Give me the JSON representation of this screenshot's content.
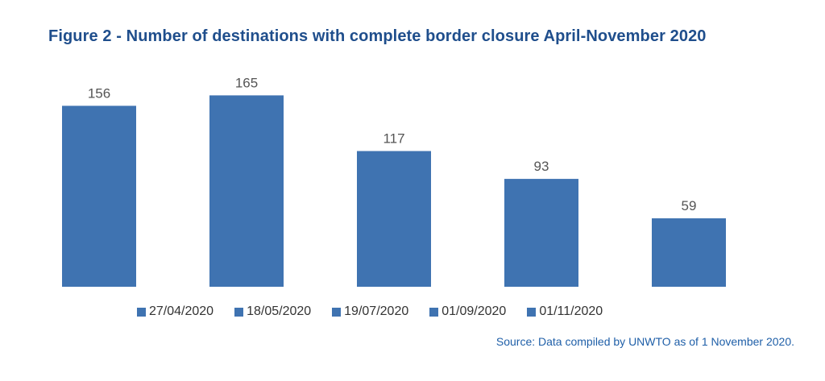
{
  "title": "Figure 2 - Number of destinations with complete border closure April-November 2020",
  "source": "Source: Data compiled by UNWTO as of 1 November 2020.",
  "colors": {
    "bar": "#3f73b1",
    "title": "#1f4e8c",
    "source": "#1f5fa8",
    "data_label": "#555555"
  },
  "chart_data": {
    "type": "bar",
    "categories": [
      "27/04/2020",
      "18/05/2020",
      "19/07/2020",
      "01/09/2020",
      "01/11/2020"
    ],
    "values": [
      156,
      165,
      117,
      93,
      59
    ],
    "ylim": [
      0,
      180
    ],
    "grid": false,
    "legend": "bottom",
    "data_labels": true
  }
}
